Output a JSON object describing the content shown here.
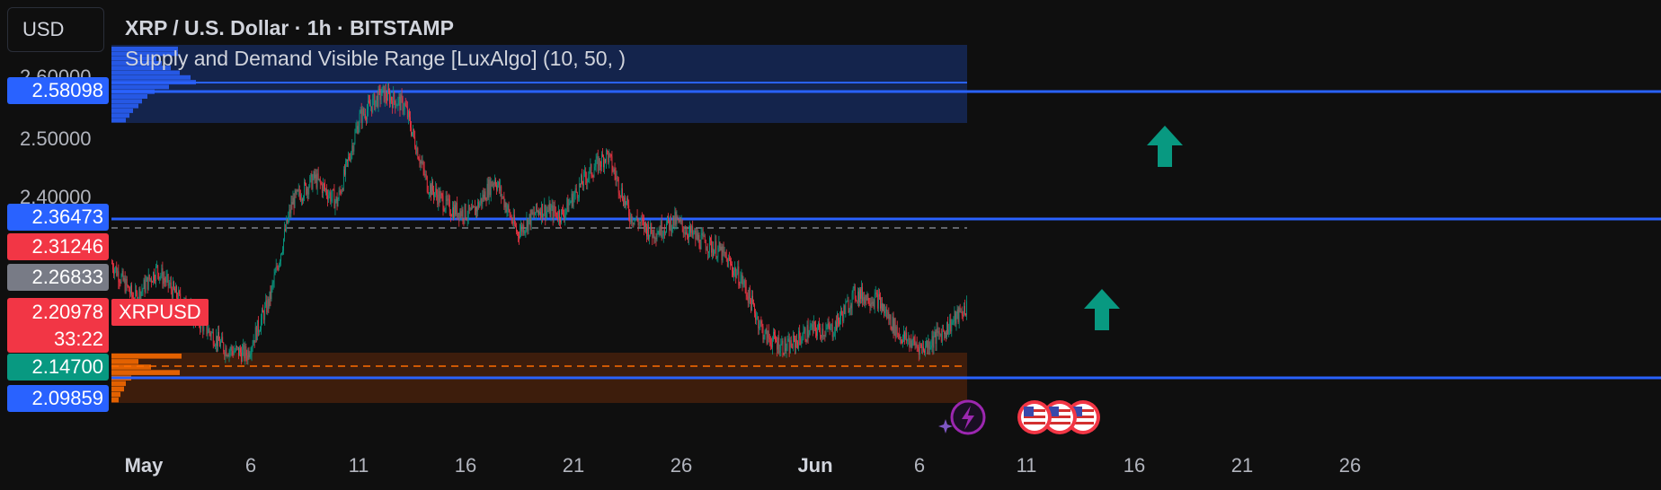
{
  "header": {
    "currency_button": "USD",
    "title": "XRP / U.S. Dollar · 1h · BITSTAMP",
    "indicator": "Supply and Demand Visible Range [LuxAlgo] (10, 50, )"
  },
  "price_axis": {
    "ticks": [
      "2.60000",
      "2.50000",
      "2.40000"
    ],
    "badges": [
      {
        "price": "2.58098",
        "color": "#2962ff"
      },
      {
        "price": "2.36473",
        "color": "#2962ff"
      },
      {
        "price": "2.31246",
        "color": "#f23645"
      },
      {
        "price": "2.26833",
        "color": "#787b86"
      },
      {
        "price": "2.14700",
        "color": "#089981"
      },
      {
        "price": "2.09859",
        "color": "#2962ff"
      }
    ],
    "current": {
      "price": "2.20978",
      "countdown": "33:22",
      "symbol": "XRPUSD",
      "color": "#f23645"
    }
  },
  "time_axis": {
    "labels": [
      {
        "text": "May",
        "bold": true
      },
      {
        "text": "6",
        "bold": false
      },
      {
        "text": "11",
        "bold": false
      },
      {
        "text": "16",
        "bold": false
      },
      {
        "text": "21",
        "bold": false
      },
      {
        "text": "26",
        "bold": false
      },
      {
        "text": "Jun",
        "bold": true
      },
      {
        "text": "6",
        "bold": false
      },
      {
        "text": "11",
        "bold": false
      },
      {
        "text": "16",
        "bold": false
      },
      {
        "text": "21",
        "bold": false
      },
      {
        "text": "26",
        "bold": false
      }
    ]
  },
  "colors": {
    "background": "#0f0f0f",
    "up": "#089981",
    "down": "#f23645",
    "level_line": "#2962ff",
    "supply_zone": "#1a2a5a",
    "demand_zone": "#4a1e08"
  },
  "chart_data": {
    "type": "candlestick",
    "symbol": "XRPUSD",
    "exchange": "BITSTAMP",
    "interval": "1h",
    "x_range": [
      "May 1",
      "Jun 8"
    ],
    "ylim": [
      2.06,
      2.64
    ],
    "close_path": [
      {
        "x": "May 1",
        "y": 2.28
      },
      {
        "x": "May 2",
        "y": 2.22
      },
      {
        "x": "May 3",
        "y": 2.27
      },
      {
        "x": "May 4",
        "y": 2.22
      },
      {
        "x": "May 5",
        "y": 2.18
      },
      {
        "x": "May 6",
        "y": 2.14
      },
      {
        "x": "May 7",
        "y": 2.13
      },
      {
        "x": "May 8",
        "y": 2.22
      },
      {
        "x": "May 9",
        "y": 2.38
      },
      {
        "x": "May 10",
        "y": 2.42
      },
      {
        "x": "May 11",
        "y": 2.38
      },
      {
        "x": "May 12",
        "y": 2.52
      },
      {
        "x": "May 13",
        "y": 2.56
      },
      {
        "x": "May 14",
        "y": 2.54
      },
      {
        "x": "May 15",
        "y": 2.41
      },
      {
        "x": "May 16",
        "y": 2.37
      },
      {
        "x": "May 17",
        "y": 2.36
      },
      {
        "x": "May 18",
        "y": 2.42
      },
      {
        "x": "May 19",
        "y": 2.33
      },
      {
        "x": "May 20",
        "y": 2.37
      },
      {
        "x": "May 21",
        "y": 2.36
      },
      {
        "x": "May 22",
        "y": 2.42
      },
      {
        "x": "May 23",
        "y": 2.46
      },
      {
        "x": "May 24",
        "y": 2.36
      },
      {
        "x": "May 25",
        "y": 2.33
      },
      {
        "x": "May 26",
        "y": 2.35
      },
      {
        "x": "May 27",
        "y": 2.32
      },
      {
        "x": "May 28",
        "y": 2.3
      },
      {
        "x": "May 29",
        "y": 2.25
      },
      {
        "x": "May 30",
        "y": 2.16
      },
      {
        "x": "May 31",
        "y": 2.14
      },
      {
        "x": "Jun 1",
        "y": 2.17
      },
      {
        "x": "Jun 2",
        "y": 2.17
      },
      {
        "x": "Jun 3",
        "y": 2.23
      },
      {
        "x": "Jun 4",
        "y": 2.22
      },
      {
        "x": "Jun 5",
        "y": 2.16
      },
      {
        "x": "Jun 6",
        "y": 2.14
      },
      {
        "x": "Jun 7",
        "y": 2.17
      },
      {
        "x": "Jun 8",
        "y": 2.21
      }
    ],
    "horizontal_levels": [
      2.58098,
      2.36473,
      2.09859
    ],
    "supply_zone": {
      "from": 2.53,
      "to": 2.63
    },
    "demand_zone": {
      "from": 2.08,
      "to": 2.16
    }
  },
  "overlay": {
    "up_arrows": 2,
    "event_icons": [
      "flash-event-icon",
      "us-flag-event-icon",
      "us-flag-event-icon",
      "us-flag-event-icon"
    ]
  }
}
